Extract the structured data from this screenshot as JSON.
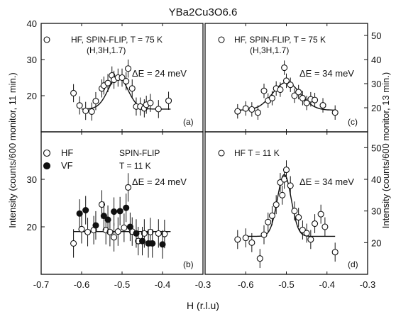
{
  "figure": {
    "title": "YBa2Cu3O6.6",
    "ylabel_left": "Intensity (counts/600 monitor, 11 min.)",
    "ylabel_right": "Intensity (counts/600 monitor, 13 min.)",
    "xlabel": "H (r.l.u)"
  },
  "chart_data": [
    {
      "id": "a",
      "type": "scatter",
      "panel_label": "(a)",
      "legend_marker": "open",
      "annotations": [
        "HF, SPIN-FLIP, T = 75 K",
        "(H,3H,1.7)",
        "ΔE = 24 meV"
      ],
      "xlim": [
        -0.7,
        -0.3
      ],
      "ylim": [
        10,
        40
      ],
      "yticks": [
        20,
        30,
        40
      ],
      "series": [
        {
          "marker": "open",
          "points": [
            [
              -0.62,
              20.7,
              2.5
            ],
            [
              -0.605,
              17.3,
              2.5
            ],
            [
              -0.59,
              15.8,
              2.5
            ],
            [
              -0.575,
              15.6,
              2.5
            ],
            [
              -0.565,
              18.5,
              2.5
            ],
            [
              -0.55,
              22.0,
              2.5
            ],
            [
              -0.545,
              22.8,
              2.5
            ],
            [
              -0.535,
              23.5,
              2.5
            ],
            [
              -0.525,
              25.6,
              2.5
            ],
            [
              -0.52,
              24.4,
              2.5
            ],
            [
              -0.51,
              25.0,
              2.5
            ],
            [
              -0.5,
              25.0,
              2.5
            ],
            [
              -0.49,
              24.0,
              2.5
            ],
            [
              -0.485,
              27.5,
              2.5
            ],
            [
              -0.475,
              22.0,
              2.5
            ],
            [
              -0.465,
              17.0,
              2.5
            ],
            [
              -0.455,
              17.0,
              2.5
            ],
            [
              -0.445,
              16.5,
              2.5
            ],
            [
              -0.44,
              17.5,
              2.5
            ],
            [
              -0.43,
              18.0,
              2.5
            ],
            [
              -0.41,
              16.3,
              2.5
            ],
            [
              -0.385,
              18.6,
              2.5
            ]
          ]
        }
      ],
      "fit": {
        "base": 16.3,
        "amp": 9.0,
        "center": -0.51,
        "sigma": 0.024,
        "xrange": [
          -0.6,
          -0.38
        ]
      }
    },
    {
      "id": "b",
      "type": "scatter",
      "panel_label": "(b)",
      "legend_entries": [
        {
          "label": "HF",
          "marker": "open"
        },
        {
          "label": "VF",
          "marker": "filled"
        }
      ],
      "annotations": [
        "SPIN-FLIP",
        "T = 11 K",
        "ΔE = 24 meV"
      ],
      "xlim": [
        -0.7,
        -0.3
      ],
      "ylim": [
        10,
        40
      ],
      "yticks": [
        20,
        30
      ],
      "xticks": [
        -0.7,
        -0.6,
        -0.5,
        -0.4,
        -0.3
      ],
      "series": [
        {
          "label": "HF",
          "marker": "open",
          "points": [
            [
              -0.62,
              16.5,
              3
            ],
            [
              -0.6,
              19.5,
              3
            ],
            [
              -0.585,
              18.9,
              3
            ],
            [
              -0.57,
              19.3,
              3
            ],
            [
              -0.55,
              24.7,
              3
            ],
            [
              -0.54,
              19.3,
              3
            ],
            [
              -0.53,
              18.9,
              3
            ],
            [
              -0.52,
              17.8,
              3
            ],
            [
              -0.51,
              19.0,
              3
            ],
            [
              -0.495,
              19.8,
              3
            ],
            [
              -0.485,
              28.3,
              3
            ],
            [
              -0.475,
              19.0,
              3
            ],
            [
              -0.46,
              17.0,
              3
            ],
            [
              -0.445,
              18.6,
              3
            ],
            [
              -0.43,
              18.9,
              3
            ],
            [
              -0.41,
              18.6,
              3
            ],
            [
              -0.395,
              18.5,
              3
            ]
          ]
        },
        {
          "label": "VF",
          "marker": "filled",
          "points": [
            [
              -0.605,
              22.8,
              3
            ],
            [
              -0.59,
              23.5,
              3
            ],
            [
              -0.565,
              20.3,
              3
            ],
            [
              -0.545,
              22.3,
              3
            ],
            [
              -0.535,
              21.5,
              3
            ],
            [
              -0.52,
              23.2,
              3
            ],
            [
              -0.505,
              23.3,
              3
            ],
            [
              -0.49,
              24.0,
              3
            ],
            [
              -0.48,
              20.0,
              3
            ],
            [
              -0.465,
              18.6,
              3
            ],
            [
              -0.45,
              17.0,
              3
            ],
            [
              -0.435,
              16.5,
              3
            ],
            [
              -0.425,
              16.5,
              3
            ],
            [
              -0.4,
              16.3,
              3
            ]
          ]
        }
      ],
      "fit": {
        "base": 19.0,
        "amp": 0,
        "center": -0.5,
        "sigma": 0.02,
        "xrange": [
          -0.62,
          -0.38
        ]
      }
    },
    {
      "id": "c",
      "type": "scatter",
      "panel_label": "(c)",
      "legend_marker": "open",
      "annotations": [
        "HF, SPIN-FLIP, T = 75 K",
        "(H,3H,1.7)",
        "ΔE = 34 meV"
      ],
      "xlim": [
        -0.7,
        -0.3
      ],
      "ylim": [
        10,
        55
      ],
      "yticks": [
        20,
        30,
        40,
        50
      ],
      "series": [
        {
          "marker": "open",
          "points": [
            [
              -0.62,
              18.5,
              3
            ],
            [
              -0.6,
              19.7,
              3
            ],
            [
              -0.585,
              19.3,
              3
            ],
            [
              -0.57,
              18.0,
              3
            ],
            [
              -0.555,
              27.0,
              3
            ],
            [
              -0.545,
              23.0,
              3
            ],
            [
              -0.535,
              24.0,
              3
            ],
            [
              -0.525,
              28.0,
              3
            ],
            [
              -0.515,
              27.5,
              3
            ],
            [
              -0.505,
              36.6,
              3
            ],
            [
              -0.5,
              31.2,
              3
            ],
            [
              -0.49,
              29.5,
              3
            ],
            [
              -0.48,
              25.0,
              3
            ],
            [
              -0.47,
              26.5,
              3
            ],
            [
              -0.46,
              24.0,
              3
            ],
            [
              -0.45,
              22.0,
              3
            ],
            [
              -0.44,
              23.5,
              3
            ],
            [
              -0.43,
              23.2,
              3
            ],
            [
              -0.41,
              21.0,
              3
            ],
            [
              -0.38,
              18.0,
              3
            ]
          ]
        }
      ],
      "fit": {
        "base": 19.0,
        "amp": 11.5,
        "center": -0.5,
        "sigma": 0.034,
        "xrange": [
          -0.62,
          -0.38
        ]
      }
    },
    {
      "id": "d",
      "type": "scatter",
      "panel_label": "(d)",
      "legend_marker": "open",
      "annotations": [
        "HF  T = 11 K",
        "ΔE = 34 meV"
      ],
      "xlim": [
        -0.7,
        -0.3
      ],
      "ylim": [
        10,
        55
      ],
      "yticks": [
        20,
        30,
        40,
        50
      ],
      "xticks": [
        -0.6,
        -0.5,
        -0.4,
        -0.3
      ],
      "series": [
        {
          "marker": "open",
          "points": [
            [
              -0.62,
              21.0,
              3
            ],
            [
              -0.6,
              21.5,
              3
            ],
            [
              -0.585,
              20.0,
              3
            ],
            [
              -0.565,
              15.0,
              3
            ],
            [
              -0.555,
              22.5,
              3
            ],
            [
              -0.545,
              26.5,
              3
            ],
            [
              -0.535,
              28.5,
              3
            ],
            [
              -0.525,
              32.0,
              3
            ],
            [
              -0.515,
              39.0,
              3
            ],
            [
              -0.51,
              35.0,
              3
            ],
            [
              -0.505,
              40.0,
              3
            ],
            [
              -0.5,
              43.0,
              3
            ],
            [
              -0.49,
              38.0,
              3
            ],
            [
              -0.48,
              30.0,
              3
            ],
            [
              -0.47,
              28.0,
              3
            ],
            [
              -0.46,
              24.0,
              3
            ],
            [
              -0.45,
              23.0,
              3
            ],
            [
              -0.44,
              21.0,
              3
            ],
            [
              -0.43,
              26.0,
              3
            ],
            [
              -0.415,
              29.0,
              3
            ],
            [
              -0.405,
              25.0,
              3
            ],
            [
              -0.38,
              17.0,
              3
            ]
          ]
        }
      ],
      "fit": {
        "base": 22.0,
        "amp": 19.5,
        "center": -0.505,
        "sigma": 0.017,
        "xrange": [
          -0.6,
          -0.38
        ]
      }
    }
  ]
}
